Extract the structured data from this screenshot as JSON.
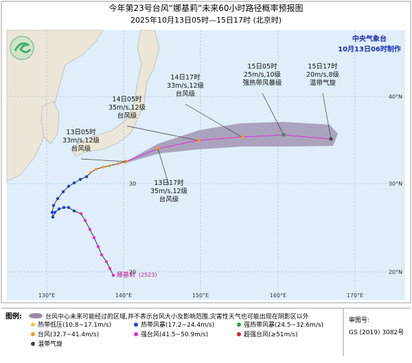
{
  "header": {
    "title": "今年第23号台风“娜基莉”未来60小时路径概率预报图",
    "subtitle": "2025年10月13日05时—15日17时 (北京时)"
  },
  "agency": {
    "name": "中央气象台",
    "time": "10月13日06时制作"
  },
  "callouts": [
    {
      "lines": [
        "13日05时",
        "33m/s,12级",
        "台风级"
      ]
    },
    {
      "lines": [
        "14日05时",
        "35m/s,12级",
        "台风级"
      ]
    },
    {
      "lines": [
        "14日17时",
        "33m/s,12级",
        "台风级"
      ]
    },
    {
      "lines": [
        "15日05时",
        "25m/s,10级",
        "强热带风暴级"
      ]
    },
    {
      "lines": [
        "15日17时",
        "20m/s,8级",
        "温带气旋"
      ]
    },
    {
      "lines": [
        "13日17时",
        "35m/s,12级",
        "台风级"
      ]
    }
  ],
  "track_label": {
    "name": "娜基莉",
    "code": "(2523)"
  },
  "lon_labels": [
    "130°E",
    "140°E",
    "150°E",
    "160°E",
    "170°E"
  ],
  "lat_labels": [
    "40°N",
    "30°N",
    "20°N"
  ],
  "inner_lat_labels": [
    "30",
    "20"
  ],
  "legend": {
    "title": "图例:",
    "cone": "台风中心未来可能经过的区域,并不表示台风大小及影响范围,灾害性天气也可能出现在阴影区以外",
    "items": [
      {
        "label": "热带低压(10.8~17.1m/s)",
        "color": "#f5c542"
      },
      {
        "label": "热带风暴(17.2~24.4m/s)",
        "color": "#1f3fd6"
      },
      {
        "label": "强热带风暴(24.5~32.6m/s)",
        "color": "#2e9c3a"
      },
      {
        "label": "台风(32.7~41.4m/s)",
        "color": "#f39c2b"
      },
      {
        "label": "强台风(41.5~50.9m/s)",
        "color": "#e02ad8"
      },
      {
        "label": "超强台风(≥51m/s)",
        "color": "#e02020"
      },
      {
        "label": "温带气旋",
        "color": "#444444"
      }
    ]
  },
  "review": {
    "title": "审图号:",
    "number": "GS (2019) 3082号"
  }
}
